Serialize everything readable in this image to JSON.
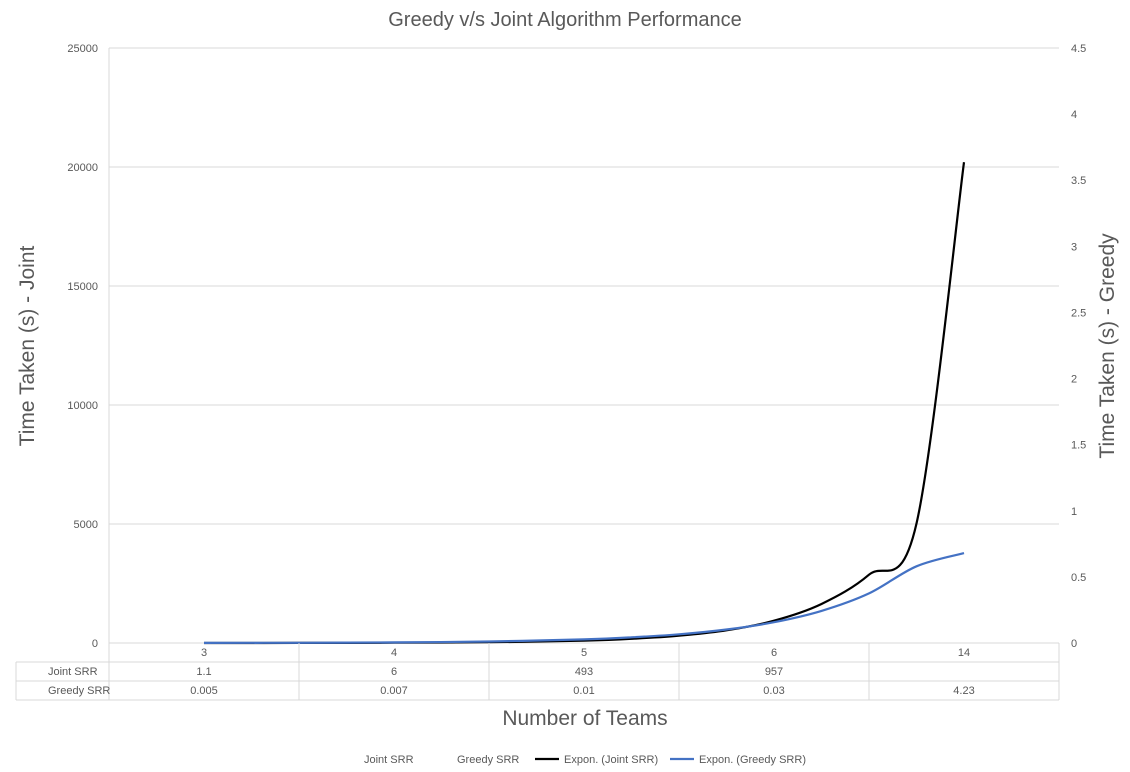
{
  "chart_data": {
    "type": "line",
    "title": "Greedy v/s Joint Algorithm Performance",
    "xlabel": "Number of Teams",
    "ylabel": "Time Taken (s) - Joint",
    "y2label": "Time Taken (s) - Greedy",
    "categories": [
      "3",
      "4",
      "5",
      "6",
      "14"
    ],
    "ylim": [
      0,
      25000
    ],
    "yticks": [
      "0",
      "5000",
      "10000",
      "15000",
      "20000",
      "25000"
    ],
    "y2lim": [
      0,
      4.5
    ],
    "y2ticks": [
      "0",
      "0.5",
      "1",
      "1.5",
      "2",
      "2.5",
      "3",
      "3.5",
      "4",
      "4.5"
    ],
    "grid": true,
    "legend_position": "bottom",
    "series": [
      {
        "name": "Joint SRR",
        "axis": "left",
        "values": [
          1.1,
          6,
          493,
          957,
          null
        ],
        "labels": [
          "1.1",
          "6",
          "493",
          "957",
          ""
        ],
        "color": "#ffffff"
      },
      {
        "name": "Greedy SRR",
        "axis": "right",
        "values": [
          0.005,
          0.007,
          0.01,
          0.03,
          4.23
        ],
        "labels": [
          "0.005",
          "0.007",
          "0.01",
          "0.03",
          "4.23"
        ],
        "color": "#ffffff"
      }
    ],
    "trendlines": [
      {
        "name": "Expon. (Joint SRR)",
        "axis": "left",
        "color": "#000000",
        "x": [
          1,
          1.5,
          2,
          2.5,
          3,
          3.25,
          3.5,
          3.75,
          4,
          4.25,
          4.5,
          4.75,
          5
        ],
        "values": [
          1.1,
          3.6,
          10.8,
          33,
          99,
          175,
          305,
          535,
          935,
          1640,
          2870,
          5020,
          20200
        ]
      },
      {
        "name": "Expon. (Greedy SRR)",
        "axis": "right",
        "color": "#4472c4",
        "x": [
          1,
          1.5,
          2,
          2.5,
          3,
          3.25,
          3.5,
          3.75,
          4,
          4.25,
          4.5,
          4.75,
          5
        ],
        "values": [
          0.0007,
          0.0018,
          0.0045,
          0.011,
          0.027,
          0.043,
          0.066,
          0.102,
          0.157,
          0.243,
          0.375,
          0.58,
          0.68
        ]
      }
    ]
  }
}
